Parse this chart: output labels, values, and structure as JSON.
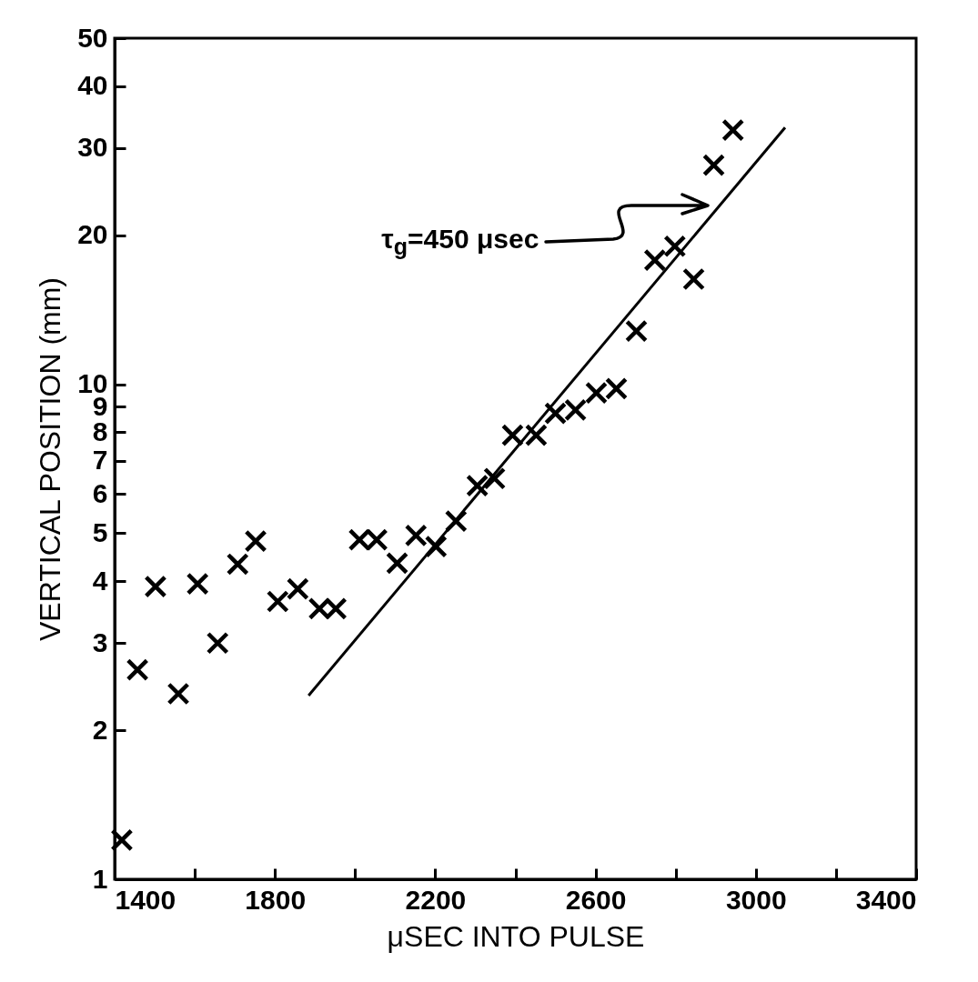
{
  "chart_data": {
    "type": "scatter",
    "xlabel": "μSEC INTO PULSE",
    "ylabel": "VERTICAL POSITION (mm)",
    "log": true,
    "grid": false,
    "marker": "cross",
    "xlim": [
      1400,
      3400
    ],
    "xticks": [
      1400,
      {
        "value": 1600,
        "label": null
      },
      1800,
      {
        "value": 2000,
        "label": null
      },
      2200,
      {
        "value": 2400,
        "label": null
      },
      2600,
      {
        "value": 2800,
        "label": null
      },
      3000,
      {
        "value": 3200,
        "label": null
      },
      3400
    ],
    "ylim": [
      1,
      50
    ],
    "yticks": [
      1,
      2,
      3,
      4,
      5,
      6,
      7,
      8,
      9,
      10,
      20,
      30,
      40,
      50
    ],
    "series": [
      {
        "color": "#000000",
        "x": [
          1418,
          1457,
          1502,
          1559,
          1607,
          1657,
          1707,
          1752,
          1807,
          1857,
          1911,
          1952,
          2011,
          2054,
          2105,
          2152,
          2202,
          2252,
          2305,
          2348,
          2393,
          2452,
          2500,
          2550,
          2602,
          2652,
          2702,
          2748,
          2798,
          2845,
          2895,
          2943
        ],
        "values": [
          1.2,
          2.65,
          3.9,
          2.37,
          3.95,
          3.0,
          4.33,
          4.82,
          3.64,
          3.86,
          3.52,
          3.52,
          4.85,
          4.85,
          4.35,
          4.95,
          4.7,
          5.29,
          6.24,
          6.45,
          7.89,
          7.89,
          8.73,
          8.87,
          9.6,
          9.8,
          12.8,
          17.8,
          19.0,
          16.3,
          27.7,
          32.6
        ]
      },
      {
        "type": "line",
        "marker": "none",
        "color": "#000000",
        "x": [
          1884,
          3073
        ],
        "values": [
          2.35,
          33
        ]
      }
    ],
    "annotations": [
      {
        "text": "τ$_{g}$=450 μsec",
        "x": 2890,
        "y": 23
      }
    ]
  }
}
